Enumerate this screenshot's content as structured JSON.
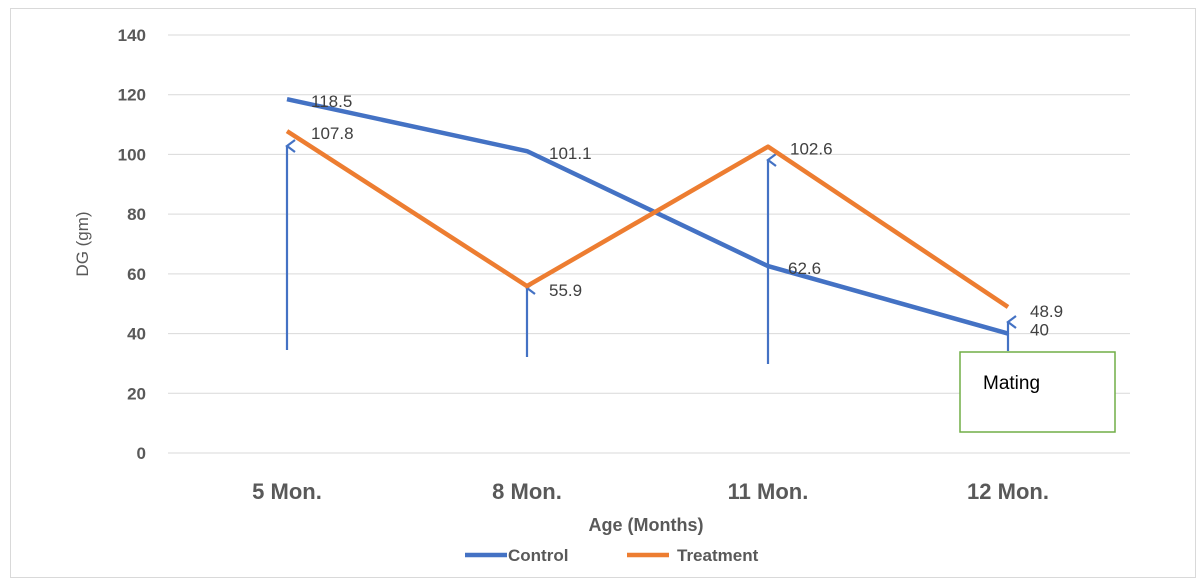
{
  "chart_data": {
    "type": "line",
    "categories": [
      "5 Mon.",
      "8 Mon.",
      "11 Mon.",
      "12 Mon."
    ],
    "series": [
      {
        "name": "Control",
        "values": [
          118.5,
          101.1,
          62.6,
          40
        ],
        "color": "#4472C4"
      },
      {
        "name": "Treatment",
        "values": [
          107.8,
          55.9,
          102.6,
          48.9
        ],
        "color": "#ED7D31"
      }
    ],
    "xlabel": "Age (Months)",
    "ylabel": "DG (gm)",
    "ylim": [
      0,
      140
    ],
    "yticks": [
      0,
      20,
      40,
      60,
      80,
      100,
      120,
      140
    ],
    "grid": true,
    "legend_position": "bottom",
    "annotation": {
      "text": "Mating",
      "border_color": "#70AD47",
      "arrow_color": "#4472C4"
    }
  }
}
